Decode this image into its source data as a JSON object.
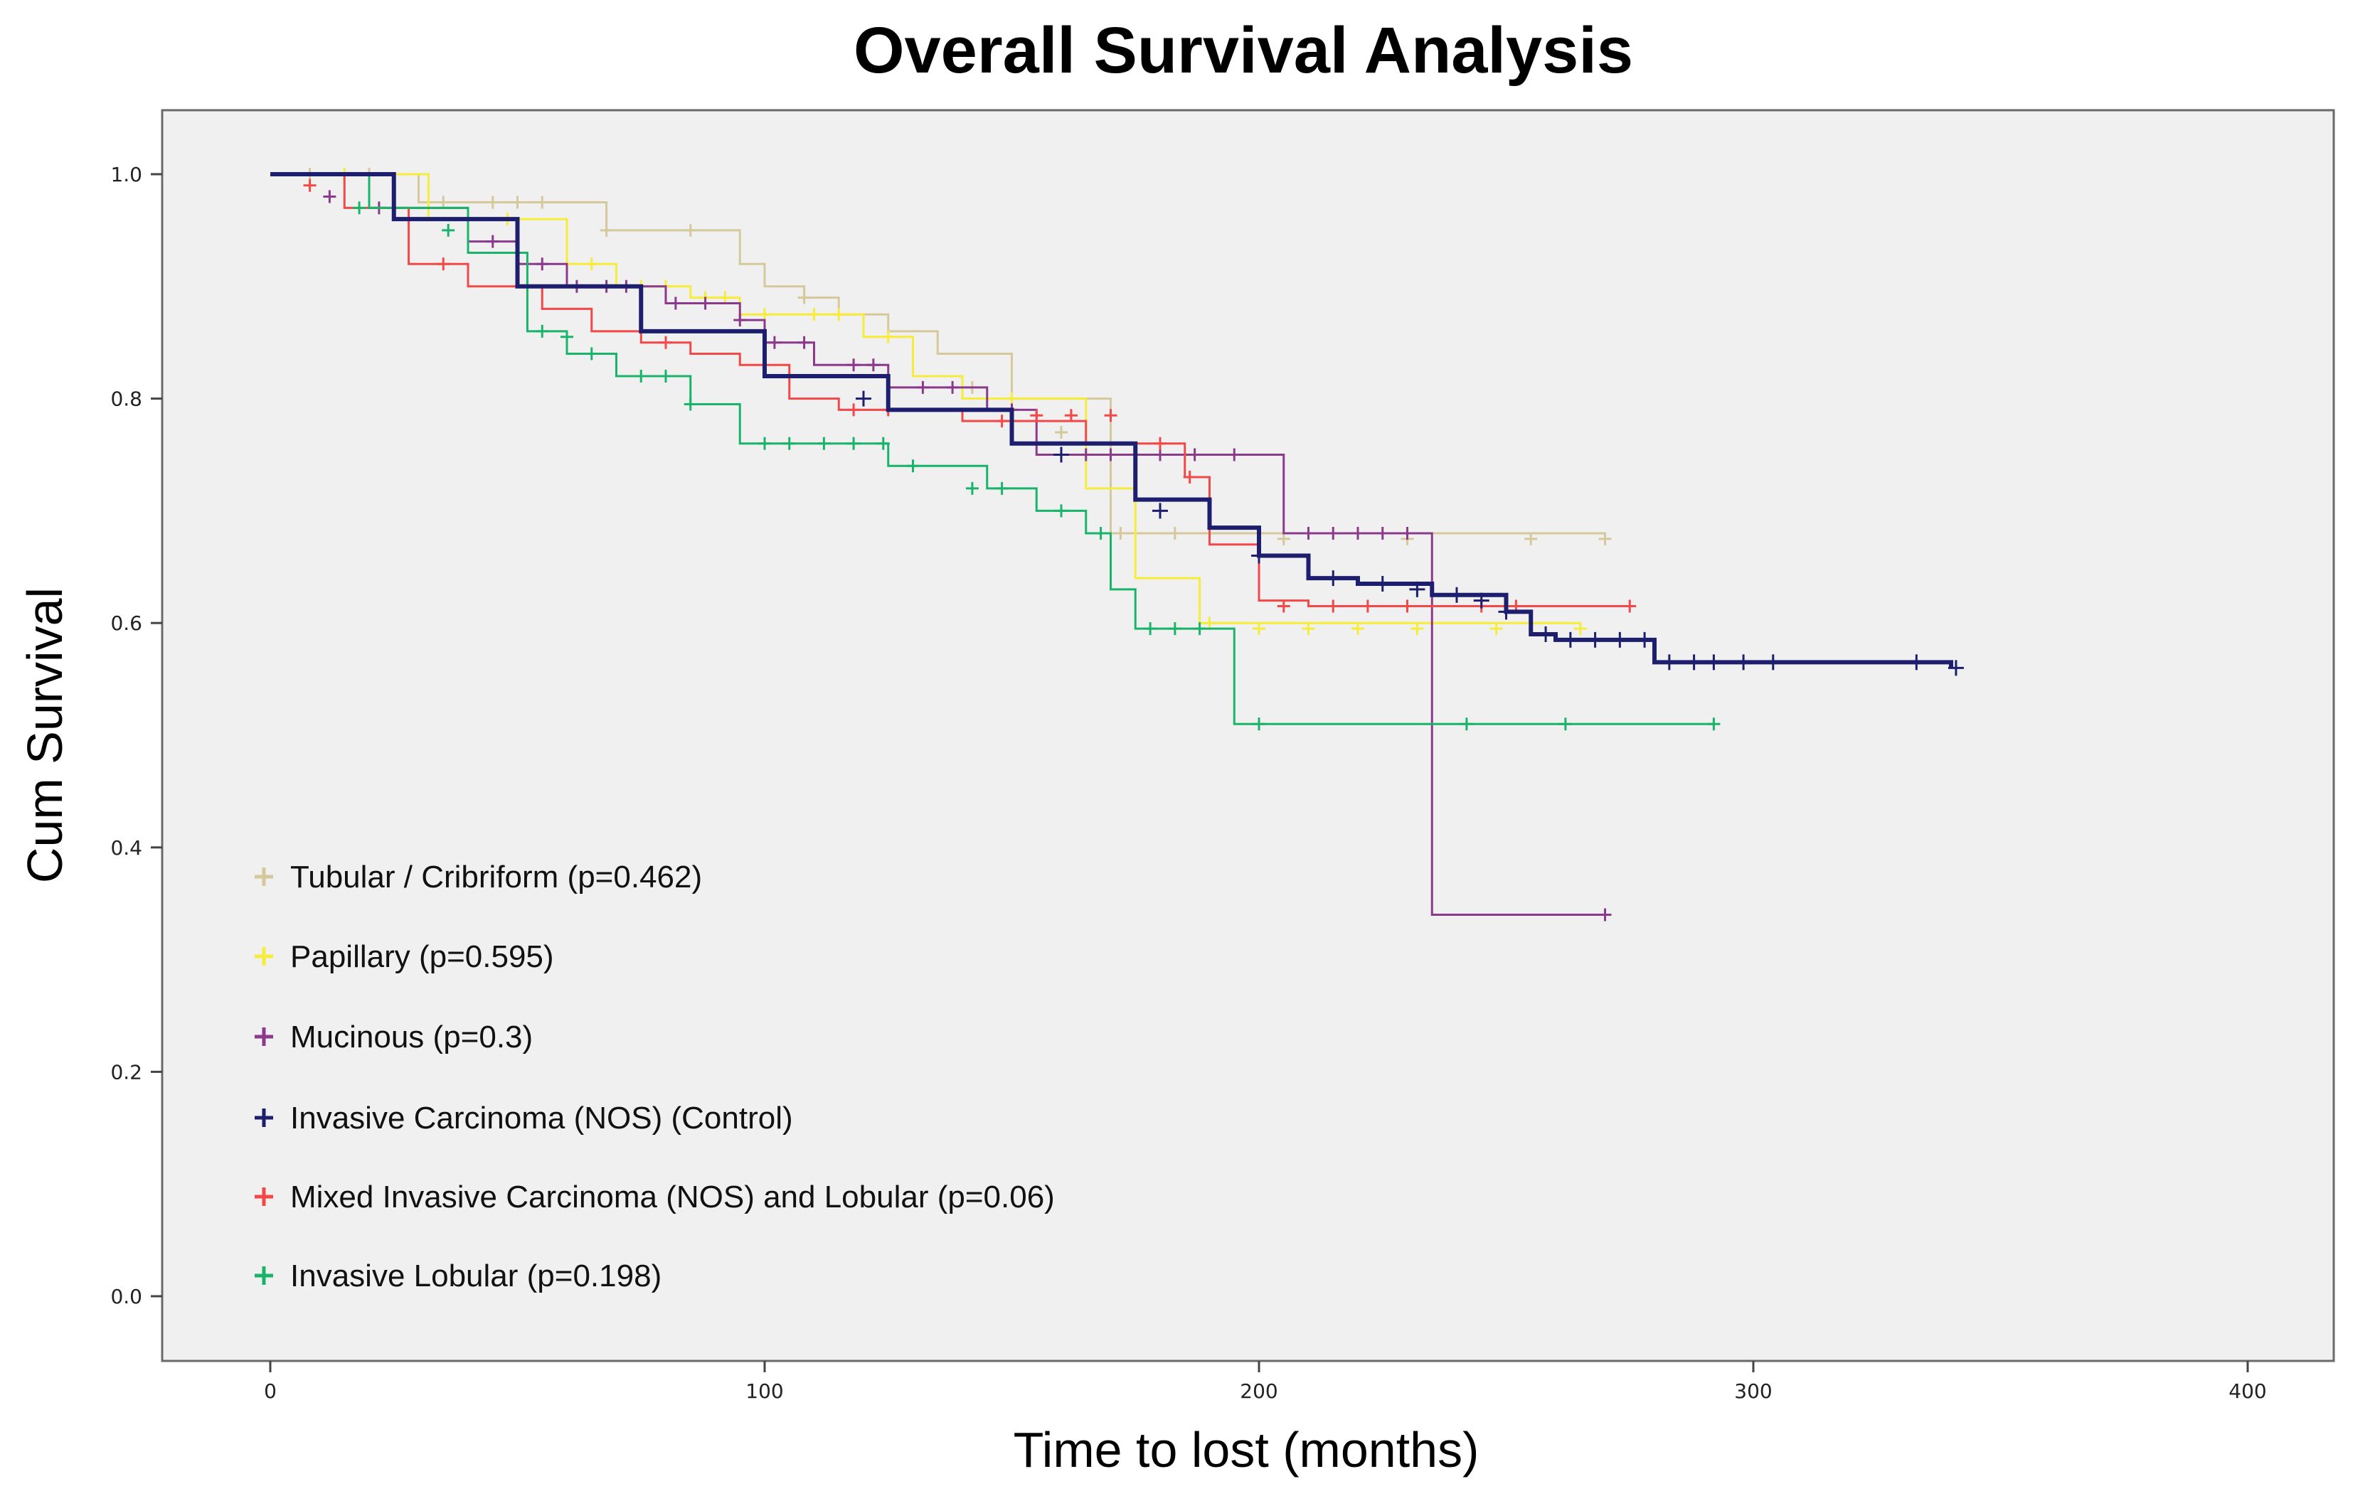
{
  "chart_data": {
    "type": "line",
    "subtype": "kaplan-meier",
    "title": "Overall Survival Analysis",
    "xlabel": "Time to lost (months)",
    "ylabel": "Cum Survival",
    "xlim": [
      0,
      400
    ],
    "ylim": [
      0,
      1.0
    ],
    "xticks": [
      0,
      100,
      200,
      300,
      400
    ],
    "yticks": [
      0.0,
      0.2,
      0.4,
      0.6,
      0.8,
      1.0
    ],
    "xtick_labels": [
      "0",
      "100",
      "200",
      "300",
      "400"
    ],
    "ytick_labels": [
      "0.0",
      "0.2",
      "0.4",
      "0.6",
      "0.8",
      "1.0"
    ],
    "grid": false,
    "legend_position": "bottom-left",
    "censor_marker": "+",
    "series": [
      {
        "name": "Tubular / Cribriform (p=0.462)",
        "color": "#d5c99b",
        "steps": [
          [
            0,
            1.0
          ],
          [
            30,
            0.975
          ],
          [
            68,
            0.95
          ],
          [
            95,
            0.92
          ],
          [
            100,
            0.9
          ],
          [
            108,
            0.89
          ],
          [
            115,
            0.875
          ],
          [
            125,
            0.86
          ],
          [
            135,
            0.84
          ],
          [
            150,
            0.8
          ],
          [
            170,
            0.68
          ],
          [
            270,
            0.675
          ]
        ],
        "censored": [
          [
            8,
            1.0
          ],
          [
            20,
            1.0
          ],
          [
            35,
            0.975
          ],
          [
            45,
            0.975
          ],
          [
            50,
            0.975
          ],
          [
            55,
            0.975
          ],
          [
            68,
            0.95
          ],
          [
            85,
            0.95
          ],
          [
            108,
            0.89
          ],
          [
            142,
            0.81
          ],
          [
            160,
            0.77
          ],
          [
            172,
            0.68
          ],
          [
            183,
            0.68
          ],
          [
            205,
            0.675
          ],
          [
            230,
            0.675
          ],
          [
            255,
            0.675
          ],
          [
            270,
            0.675
          ]
        ]
      },
      {
        "name": "Papillary (p=0.595)",
        "color": "#f5ec3c",
        "steps": [
          [
            0,
            1.0
          ],
          [
            32,
            0.96
          ],
          [
            60,
            0.92
          ],
          [
            70,
            0.9
          ],
          [
            85,
            0.89
          ],
          [
            95,
            0.875
          ],
          [
            120,
            0.855
          ],
          [
            130,
            0.82
          ],
          [
            140,
            0.8
          ],
          [
            165,
            0.72
          ],
          [
            175,
            0.64
          ],
          [
            188,
            0.6
          ],
          [
            265,
            0.595
          ]
        ],
        "censored": [
          [
            15,
            1.0
          ],
          [
            48,
            0.96
          ],
          [
            65,
            0.92
          ],
          [
            75,
            0.9
          ],
          [
            80,
            0.9
          ],
          [
            88,
            0.89
          ],
          [
            92,
            0.89
          ],
          [
            100,
            0.875
          ],
          [
            110,
            0.875
          ],
          [
            115,
            0.875
          ],
          [
            125,
            0.855
          ],
          [
            150,
            0.8
          ],
          [
            190,
            0.6
          ],
          [
            200,
            0.595
          ],
          [
            210,
            0.595
          ],
          [
            220,
            0.595
          ],
          [
            232,
            0.595
          ],
          [
            248,
            0.595
          ],
          [
            265,
            0.595
          ]
        ]
      },
      {
        "name": "Mucinous (p=0.3)",
        "color": "#8b3a8b",
        "steps": [
          [
            0,
            1.0
          ],
          [
            20,
            0.97
          ],
          [
            40,
            0.94
          ],
          [
            50,
            0.92
          ],
          [
            60,
            0.9
          ],
          [
            80,
            0.885
          ],
          [
            95,
            0.87
          ],
          [
            100,
            0.85
          ],
          [
            110,
            0.83
          ],
          [
            125,
            0.81
          ],
          [
            145,
            0.79
          ],
          [
            155,
            0.75
          ],
          [
            205,
            0.68
          ],
          [
            235,
            0.34
          ],
          [
            270,
            0.34
          ]
        ],
        "censored": [
          [
            12,
            0.98
          ],
          [
            22,
            0.97
          ],
          [
            45,
            0.94
          ],
          [
            55,
            0.92
          ],
          [
            62,
            0.9
          ],
          [
            68,
            0.9
          ],
          [
            72,
            0.9
          ],
          [
            82,
            0.885
          ],
          [
            88,
            0.885
          ],
          [
            95,
            0.87
          ],
          [
            102,
            0.85
          ],
          [
            108,
            0.85
          ],
          [
            118,
            0.83
          ],
          [
            122,
            0.83
          ],
          [
            132,
            0.81
          ],
          [
            138,
            0.81
          ],
          [
            150,
            0.79
          ],
          [
            160,
            0.75
          ],
          [
            165,
            0.75
          ],
          [
            170,
            0.75
          ],
          [
            180,
            0.75
          ],
          [
            187,
            0.75
          ],
          [
            195,
            0.75
          ],
          [
            210,
            0.68
          ],
          [
            215,
            0.68
          ],
          [
            220,
            0.68
          ],
          [
            225,
            0.68
          ],
          [
            230,
            0.68
          ],
          [
            270,
            0.34
          ]
        ]
      },
      {
        "name": "Invasive Carcinoma (NOS) (Control)",
        "color": "#1e1e6e",
        "steps": [
          [
            0,
            1.0
          ],
          [
            25,
            0.96
          ],
          [
            50,
            0.9
          ],
          [
            75,
            0.86
          ],
          [
            100,
            0.82
          ],
          [
            125,
            0.79
          ],
          [
            150,
            0.76
          ],
          [
            175,
            0.71
          ],
          [
            190,
            0.685
          ],
          [
            200,
            0.66
          ],
          [
            210,
            0.64
          ],
          [
            220,
            0.635
          ],
          [
            235,
            0.625
          ],
          [
            250,
            0.61
          ],
          [
            255,
            0.59
          ],
          [
            260,
            0.585
          ],
          [
            280,
            0.565
          ],
          [
            340,
            0.56
          ]
        ],
        "censored": [
          [
            120,
            0.8
          ],
          [
            160,
            0.75
          ],
          [
            180,
            0.7
          ],
          [
            200,
            0.66
          ],
          [
            215,
            0.64
          ],
          [
            225,
            0.635
          ],
          [
            232,
            0.63
          ],
          [
            240,
            0.625
          ],
          [
            245,
            0.62
          ],
          [
            250,
            0.61
          ],
          [
            258,
            0.59
          ],
          [
            263,
            0.585
          ],
          [
            268,
            0.585
          ],
          [
            273,
            0.585
          ],
          [
            278,
            0.585
          ],
          [
            283,
            0.565
          ],
          [
            288,
            0.565
          ],
          [
            292,
            0.565
          ],
          [
            298,
            0.565
          ],
          [
            304,
            0.565
          ],
          [
            333,
            0.565
          ],
          [
            341,
            0.56
          ]
        ]
      },
      {
        "name": "Mixed Invasive Carcinoma (NOS) and Lobular (p=0.06)",
        "color": "#f24848",
        "steps": [
          [
            0,
            1.0
          ],
          [
            15,
            0.97
          ],
          [
            28,
            0.92
          ],
          [
            40,
            0.9
          ],
          [
            55,
            0.88
          ],
          [
            65,
            0.86
          ],
          [
            75,
            0.85
          ],
          [
            85,
            0.84
          ],
          [
            95,
            0.83
          ],
          [
            105,
            0.8
          ],
          [
            115,
            0.79
          ],
          [
            140,
            0.78
          ],
          [
            165,
            0.76
          ],
          [
            185,
            0.73
          ],
          [
            190,
            0.67
          ],
          [
            200,
            0.62
          ],
          [
            210,
            0.615
          ],
          [
            275,
            0.615
          ]
        ],
        "censored": [
          [
            8,
            0.99
          ],
          [
            35,
            0.92
          ],
          [
            80,
            0.85
          ],
          [
            118,
            0.79
          ],
          [
            125,
            0.79
          ],
          [
            148,
            0.78
          ],
          [
            155,
            0.785
          ],
          [
            162,
            0.785
          ],
          [
            170,
            0.785
          ],
          [
            180,
            0.76
          ],
          [
            186,
            0.73
          ],
          [
            205,
            0.615
          ],
          [
            215,
            0.615
          ],
          [
            222,
            0.615
          ],
          [
            230,
            0.615
          ],
          [
            245,
            0.615
          ],
          [
            252,
            0.615
          ],
          [
            275,
            0.615
          ]
        ]
      },
      {
        "name": "Invasive Lobular (p=0.198)",
        "color": "#1ab36a",
        "steps": [
          [
            0,
            1.0
          ],
          [
            20,
            0.97
          ],
          [
            40,
            0.93
          ],
          [
            52,
            0.86
          ],
          [
            60,
            0.84
          ],
          [
            70,
            0.82
          ],
          [
            85,
            0.795
          ],
          [
            95,
            0.76
          ],
          [
            125,
            0.74
          ],
          [
            145,
            0.72
          ],
          [
            155,
            0.7
          ],
          [
            165,
            0.68
          ],
          [
            170,
            0.63
          ],
          [
            175,
            0.595
          ],
          [
            195,
            0.51
          ],
          [
            292,
            0.51
          ]
        ],
        "censored": [
          [
            18,
            0.97
          ],
          [
            36,
            0.95
          ],
          [
            55,
            0.86
          ],
          [
            60,
            0.855
          ],
          [
            65,
            0.84
          ],
          [
            75,
            0.82
          ],
          [
            80,
            0.82
          ],
          [
            85,
            0.795
          ],
          [
            100,
            0.76
          ],
          [
            105,
            0.76
          ],
          [
            112,
            0.76
          ],
          [
            118,
            0.76
          ],
          [
            124,
            0.76
          ],
          [
            130,
            0.74
          ],
          [
            142,
            0.72
          ],
          [
            148,
            0.72
          ],
          [
            160,
            0.7
          ],
          [
            168,
            0.68
          ],
          [
            178,
            0.595
          ],
          [
            183,
            0.595
          ],
          [
            188,
            0.595
          ],
          [
            200,
            0.51
          ],
          [
            242,
            0.51
          ],
          [
            262,
            0.51
          ],
          [
            292,
            0.51
          ]
        ]
      }
    ]
  }
}
